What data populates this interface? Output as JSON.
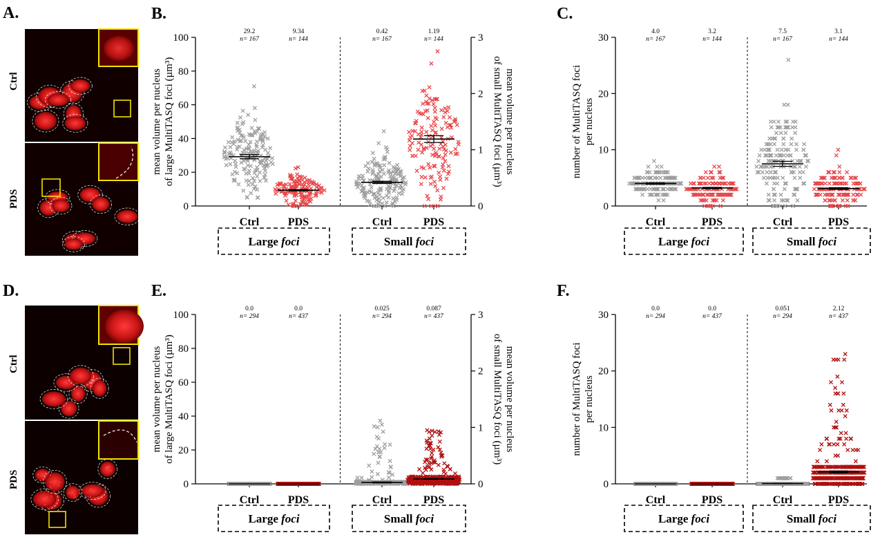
{
  "panels": {
    "A": {
      "letter": "A.",
      "top_label": "Ctrl",
      "bottom_label": "PDS"
    },
    "D": {
      "letter": "D.",
      "top_label": "Ctrl",
      "bottom_label": "PDS"
    }
  },
  "colors": {
    "ctrl": "#9e9e9e",
    "pds_light": "#e8474a",
    "pds_dark": "#b01010",
    "micro_bg": "#0a0000",
    "nucleus": "#c81414"
  },
  "chart_data": [
    {
      "panel": "B.",
      "type": "scatter",
      "ylabel_left_lines": [
        "mean volume per nucleus",
        "of large MultiTASQ foci (µm³)"
      ],
      "ylabel_right_lines": [
        "mean volume per nucleus",
        "of small MultiTASQ foci (µm³)"
      ],
      "ylim_left": [
        0,
        100
      ],
      "yticks_left": [
        "0",
        "20",
        "40",
        "60",
        "80",
        "100"
      ],
      "ylim_right": [
        0,
        3
      ],
      "yticks_right": [
        "0",
        "1",
        "2",
        "3"
      ],
      "categories": [
        "Ctrl",
        "PDS",
        "Ctrl",
        "PDS"
      ],
      "groups": [
        "Large foci",
        "Small foci"
      ],
      "series": [
        {
          "group": "Large foci",
          "name": "Ctrl",
          "axis": "left",
          "mean": 29.2,
          "sem": 1.2,
          "n_label": "n= 167",
          "stat_label": "29.2",
          "min": 5,
          "max": 71,
          "n_points": 167,
          "color": "ctrl"
        },
        {
          "group": "Large foci",
          "name": "PDS",
          "axis": "left",
          "mean": 9.34,
          "sem": 0.4,
          "n_label": "n= 144",
          "stat_label": "9.34",
          "min": 0,
          "max": 23,
          "n_points": 144,
          "color": "pds_light"
        },
        {
          "group": "Small foci",
          "name": "Ctrl",
          "axis": "right",
          "mean": 0.42,
          "sem": 0.02,
          "n_label": "n= 167",
          "stat_label": "0.42",
          "min": 0,
          "max": 1.33,
          "n_points": 167,
          "color": "ctrl"
        },
        {
          "group": "Small foci",
          "name": "PDS",
          "axis": "right",
          "mean": 1.19,
          "sem": 0.06,
          "n_label": "n= 144",
          "stat_label": "1.19",
          "min": 0,
          "max": 2.75,
          "n_points": 144,
          "color": "pds_light"
        }
      ]
    },
    {
      "panel": "C.",
      "type": "scatter",
      "ylabel_left_lines": [
        "number of MultiTASQ foci",
        "per nucleus"
      ],
      "ylim_left": [
        0,
        30
      ],
      "yticks_left": [
        "0",
        "10",
        "20",
        "30"
      ],
      "categories": [
        "Ctrl",
        "PDS",
        "Ctrl",
        "PDS"
      ],
      "groups": [
        "Large foci",
        "Small foci"
      ],
      "series": [
        {
          "group": "Large foci",
          "name": "Ctrl",
          "axis": "left",
          "mean": 4.0,
          "sem": 0.12,
          "n_label": "n= 167",
          "stat_label": "4.0",
          "min": 1,
          "max": 8,
          "n_points": 167,
          "color": "ctrl",
          "integer": true
        },
        {
          "group": "Large foci",
          "name": "PDS",
          "axis": "left",
          "mean": 3.2,
          "sem": 0.12,
          "n_label": "n= 144",
          "stat_label": "3.2",
          "min": 0,
          "max": 7,
          "n_points": 144,
          "color": "pds_light",
          "integer": true
        },
        {
          "group": "Small foci",
          "name": "Ctrl",
          "axis": "left",
          "mean": 7.5,
          "sem": 0.45,
          "n_label": "n= 167",
          "stat_label": "7.5",
          "min": 0,
          "max": 26,
          "n_points": 167,
          "color": "ctrl",
          "integer": true
        },
        {
          "group": "Small foci",
          "name": "PDS",
          "axis": "left",
          "mean": 3.1,
          "sem": 0.15,
          "n_label": "n= 144",
          "stat_label": "3.1",
          "min": 0,
          "max": 10,
          "n_points": 144,
          "color": "pds_light",
          "integer": true
        }
      ]
    },
    {
      "panel": "E.",
      "type": "scatter",
      "ylabel_left_lines": [
        "mean volume per nucleus",
        "of large MultiTASQ foci (µm³)"
      ],
      "ylabel_right_lines": [
        "mean volume per nucleus",
        "of small MultiTASQ foci (µm³)"
      ],
      "ylim_left": [
        0,
        100
      ],
      "yticks_left": [
        "0",
        "20",
        "40",
        "60",
        "80",
        "100"
      ],
      "ylim_right": [
        0,
        3
      ],
      "yticks_right": [
        "0",
        "1",
        "2",
        "3"
      ],
      "categories": [
        "Ctrl",
        "PDS",
        "Ctrl",
        "PDS"
      ],
      "groups": [
        "Large foci",
        "Small foci"
      ],
      "series": [
        {
          "group": "Large foci",
          "name": "Ctrl",
          "axis": "left",
          "mean": 0.0,
          "sem": 0,
          "n_label": "n= 294",
          "stat_label": "0.0",
          "min": 0,
          "max": 0,
          "n_points": 294,
          "color": "ctrl"
        },
        {
          "group": "Large foci",
          "name": "PDS",
          "axis": "left",
          "mean": 0.0,
          "sem": 0,
          "n_label": "n= 437",
          "stat_label": "0.0",
          "min": 0,
          "max": 0,
          "n_points": 437,
          "color": "pds_dark"
        },
        {
          "group": "Small foci",
          "name": "Ctrl",
          "axis": "right",
          "mean": 0.025,
          "sem": 0.008,
          "n_label": "n= 294",
          "stat_label": "0.025",
          "min": 0,
          "max": 1.12,
          "n_points": 294,
          "color": "ctrl",
          "skew": true
        },
        {
          "group": "Small foci",
          "name": "PDS",
          "axis": "right",
          "mean": 0.087,
          "sem": 0.006,
          "n_label": "n= 437",
          "stat_label": "0.087",
          "min": 0,
          "max": 0.95,
          "n_points": 437,
          "color": "pds_dark",
          "skew": true
        }
      ]
    },
    {
      "panel": "F.",
      "type": "scatter",
      "ylabel_left_lines": [
        "number of MultiTASQ foci",
        "per nucleus"
      ],
      "ylim_left": [
        0,
        30
      ],
      "yticks_left": [
        "0",
        "10",
        "20",
        "30"
      ],
      "categories": [
        "Ctrl",
        "PDS",
        "Ctrl",
        "PDS"
      ],
      "groups": [
        "Large foci",
        "Small foci"
      ],
      "series": [
        {
          "group": "Large foci",
          "name": "Ctrl",
          "axis": "left",
          "mean": 0.0,
          "sem": 0,
          "n_label": "n= 294",
          "stat_label": "0.0",
          "min": 0,
          "max": 0,
          "n_points": 294,
          "color": "ctrl",
          "integer": true
        },
        {
          "group": "Large foci",
          "name": "PDS",
          "axis": "left",
          "mean": 0.0,
          "sem": 0,
          "n_label": "n= 437",
          "stat_label": "0.0",
          "min": 0,
          "max": 0,
          "n_points": 437,
          "color": "pds_dark",
          "integer": true
        },
        {
          "group": "Small foci",
          "name": "Ctrl",
          "axis": "left",
          "mean": 0.051,
          "sem": 0.02,
          "n_label": "n= 294",
          "stat_label": "0.051",
          "min": 0,
          "max": 1,
          "n_points": 294,
          "color": "ctrl",
          "integer": true,
          "skew": true
        },
        {
          "group": "Small foci",
          "name": "PDS",
          "axis": "left",
          "mean": 2.12,
          "sem": 0.15,
          "n_label": "n= 437",
          "stat_label": "2.12",
          "min": 0,
          "max": 23,
          "n_points": 437,
          "color": "pds_dark",
          "integer": true,
          "skew": true
        }
      ]
    }
  ]
}
